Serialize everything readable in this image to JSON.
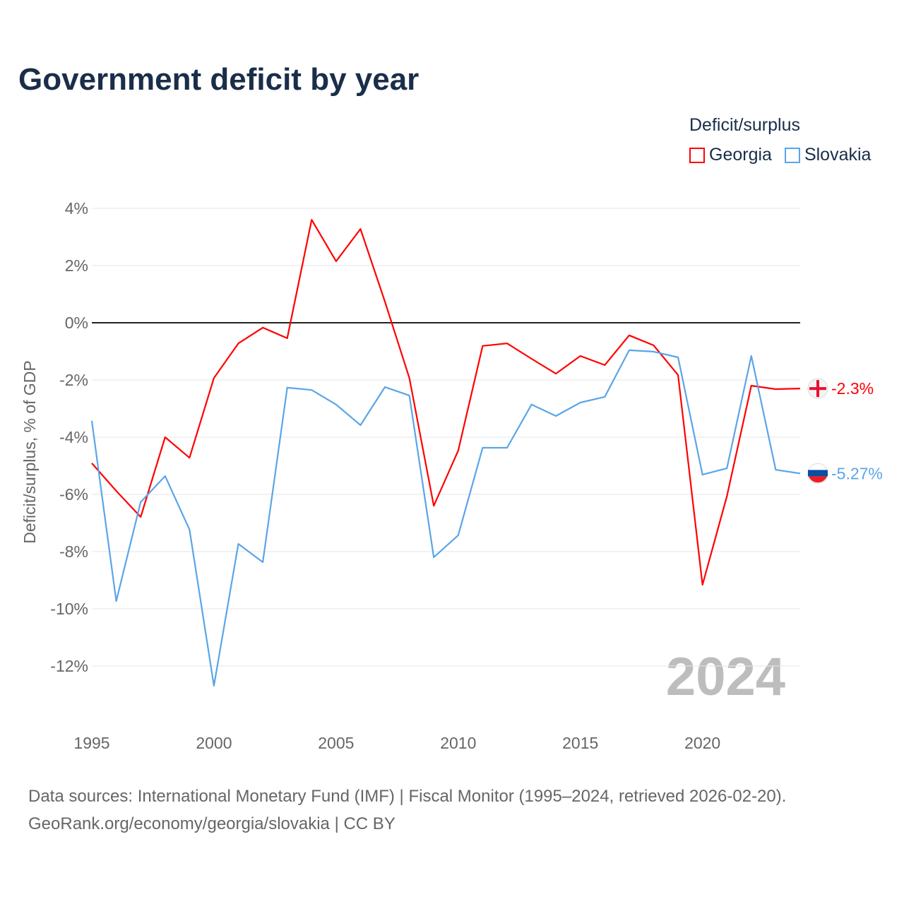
{
  "title": "Government deficit by year",
  "legend": {
    "title": "Deficit/surplus",
    "items": [
      "Georgia",
      "Slovakia"
    ]
  },
  "watermark_year": "2024",
  "sources": {
    "line1": "Data sources: International Monetary Fund (IMF) | Fiscal Monitor (1995–2024, retrieved 2026-02-20).",
    "line2": "GeoRank.org/economy/georgia/slovakia | CC BY"
  },
  "chart_data": {
    "type": "line",
    "title": "Government deficit by year",
    "xlabel": "",
    "ylabel": "Deficit/surplus, % of GDP",
    "xlim": [
      1995,
      2024
    ],
    "ylim": [
      -14,
      4
    ],
    "x_ticks": [
      1995,
      2000,
      2005,
      2010,
      2015,
      2020
    ],
    "y_ticks": [
      4,
      2,
      0,
      -2,
      -4,
      -6,
      -8,
      -10,
      -12
    ],
    "y_tick_labels": [
      "4%",
      "2%",
      "0%",
      "-2%",
      "-4%",
      "-6%",
      "-8%",
      "-10%",
      "-12%"
    ],
    "grid": true,
    "legend_position": "top-right",
    "x": [
      1995,
      1996,
      1997,
      1998,
      1999,
      2000,
      2001,
      2002,
      2003,
      2004,
      2005,
      2006,
      2007,
      2008,
      2009,
      2010,
      2011,
      2012,
      2013,
      2014,
      2015,
      2016,
      2017,
      2018,
      2019,
      2020,
      2021,
      2022,
      2023,
      2024
    ],
    "series": [
      {
        "name": "Georgia",
        "color": "#ff0000",
        "end_label": "-2.3%",
        "values": [
          -4.91,
          -5.88,
          -6.79,
          -4.0,
          -4.72,
          -1.93,
          -0.72,
          -0.17,
          -0.54,
          3.6,
          2.15,
          3.28,
          0.74,
          -1.93,
          -6.4,
          -4.47,
          -0.81,
          -0.72,
          -1.26,
          -1.78,
          -1.16,
          -1.48,
          -0.44,
          -0.79,
          -1.83,
          -9.16,
          -6.07,
          -2.2,
          -2.32,
          -2.3
        ]
      },
      {
        "name": "Slovakia",
        "color": "#5aa5e8",
        "end_label": "-5.27%",
        "values": [
          -3.43,
          -9.73,
          -6.27,
          -5.36,
          -7.23,
          -12.69,
          -7.73,
          -8.37,
          -2.27,
          -2.35,
          -2.86,
          -3.58,
          -2.25,
          -2.54,
          -8.2,
          -7.43,
          -4.37,
          -4.37,
          -2.86,
          -3.26,
          -2.79,
          -2.59,
          -0.96,
          -1.01,
          -1.21,
          -5.31,
          -5.09,
          -1.16,
          -5.14,
          -5.27
        ]
      }
    ]
  }
}
